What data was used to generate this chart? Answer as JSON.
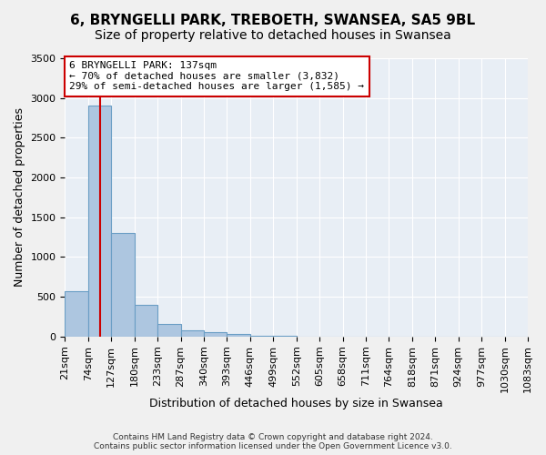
{
  "title_line1": "6, BRYNGELLI PARK, TREBOETH, SWANSEA, SA5 9BL",
  "title_line2": "Size of property relative to detached houses in Swansea",
  "xlabel": "Distribution of detached houses by size in Swansea",
  "ylabel": "Number of detached properties",
  "footer_line1": "Contains HM Land Registry data © Crown copyright and database right 2024.",
  "footer_line2": "Contains public sector information licensed under the Open Government Licence v3.0.",
  "bin_labels": [
    "21sqm",
    "74sqm",
    "127sqm",
    "180sqm",
    "233sqm",
    "287sqm",
    "340sqm",
    "393sqm",
    "446sqm",
    "499sqm",
    "552sqm",
    "605sqm",
    "658sqm",
    "711sqm",
    "764sqm",
    "818sqm",
    "871sqm",
    "924sqm",
    "977sqm",
    "1030sqm",
    "1083sqm"
  ],
  "bar_values": [
    570,
    2900,
    1300,
    400,
    160,
    80,
    50,
    30,
    15,
    5,
    0,
    0,
    0,
    0,
    0,
    0,
    0,
    0,
    0,
    0
  ],
  "bar_color": "#adc6e0",
  "bar_edge_color": "#6a9ec5",
  "annotation_text": "6 BRYNGELLI PARK: 137sqm\n← 70% of detached houses are smaller (3,832)\n29% of semi-detached houses are larger (1,585) →",
  "annotation_box_color": "#ffffff",
  "annotation_box_edge_color": "#cc0000",
  "vline_color": "#cc0000",
  "vline_x": 1.5,
  "ylim": [
    0,
    3500
  ],
  "yticks": [
    0,
    500,
    1000,
    1500,
    2000,
    2500,
    3000,
    3500
  ],
  "background_color": "#e8eef5",
  "grid_color": "#ffffff",
  "title_fontsize": 11,
  "subtitle_fontsize": 10,
  "axis_fontsize": 9,
  "tick_fontsize": 8
}
